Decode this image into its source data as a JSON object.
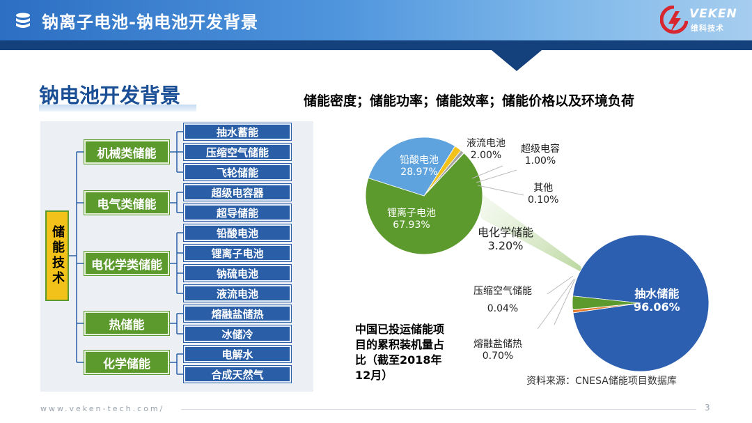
{
  "header": {
    "title": "钠离子电池-钠电池开发背景",
    "logo_text": "VEKEN",
    "logo_sub": "维科技术",
    "logo_icon": "company-logo-icon",
    "title_icon": "database-icon"
  },
  "section": {
    "title": "钠电池开发背景",
    "subtitle": "储能密度；储能功率；储能效率；储能价格以及环境负荷"
  },
  "tree": {
    "root": "储能技术",
    "categories": [
      {
        "label": "机械类储能",
        "items": [
          "抽水蓄能",
          "压缩空气储能",
          "飞轮储能"
        ]
      },
      {
        "label": "电气类储能",
        "items": [
          "超级电容器",
          "超导储能"
        ]
      },
      {
        "label": "电化学类储能",
        "items": [
          "铅酸电池",
          "锂离子电池",
          "钠硫电池",
          "液流电池"
        ]
      },
      {
        "label": "热储能",
        "items": [
          "熔融盐储热",
          "冰储冷"
        ]
      },
      {
        "label": "化学储能",
        "items": [
          "电解水",
          "合成天然气"
        ]
      }
    ]
  },
  "chart_data": {
    "type": "pie",
    "title": "中国已投运储能项目的累积装机量占比（截至2018年12月）",
    "source": "资料来源：CNESA储能项目数据库",
    "main_pie": [
      {
        "name": "抽水储能",
        "value": 96.06,
        "color": "#2c5faf"
      },
      {
        "name": "电化学储能",
        "value": 3.2,
        "color": "#5d9a2e"
      },
      {
        "name": "压缩空气储能",
        "value": 0.04,
        "color": "#a5a5a5"
      },
      {
        "name": "熔融盐储热",
        "value": 0.7,
        "color": "#e8792c"
      }
    ],
    "sub_pie": {
      "parent": "电化学储能",
      "slices": [
        {
          "name": "锂离子电池",
          "value": 67.93,
          "color": "#5d9a2e"
        },
        {
          "name": "铅酸电池",
          "value": 28.97,
          "color": "#5fa3de"
        },
        {
          "name": "液流电池",
          "value": 2.0,
          "color": "#f2c21a"
        },
        {
          "name": "超级电容",
          "value": 1.0,
          "color": "#a5a5a5"
        },
        {
          "name": "其他",
          "value": 0.1,
          "color": "#6b8fc9"
        }
      ]
    },
    "labels": {
      "lithium": {
        "name": "锂离子电池",
        "value": "67.93%"
      },
      "lead": {
        "name": "铅酸电池",
        "value": "28.97%"
      },
      "flow": {
        "name": "液流电池",
        "value": "2.00%"
      },
      "supercap": {
        "name": "超级电容",
        "value": "1.00%"
      },
      "other": {
        "name": "其他",
        "value": "0.10%"
      },
      "electrochem": {
        "name": "电化学储能",
        "value": "3.20%"
      },
      "pumped": {
        "name": "抽水储能",
        "value": "96.06%"
      },
      "caes": {
        "name": "压缩空气储能",
        "value": "0.04%"
      },
      "salt": {
        "name": "熔融盐储热",
        "value": "0.70%"
      }
    }
  },
  "footer": {
    "url": "www.veken-tech.com/",
    "page": "3"
  }
}
